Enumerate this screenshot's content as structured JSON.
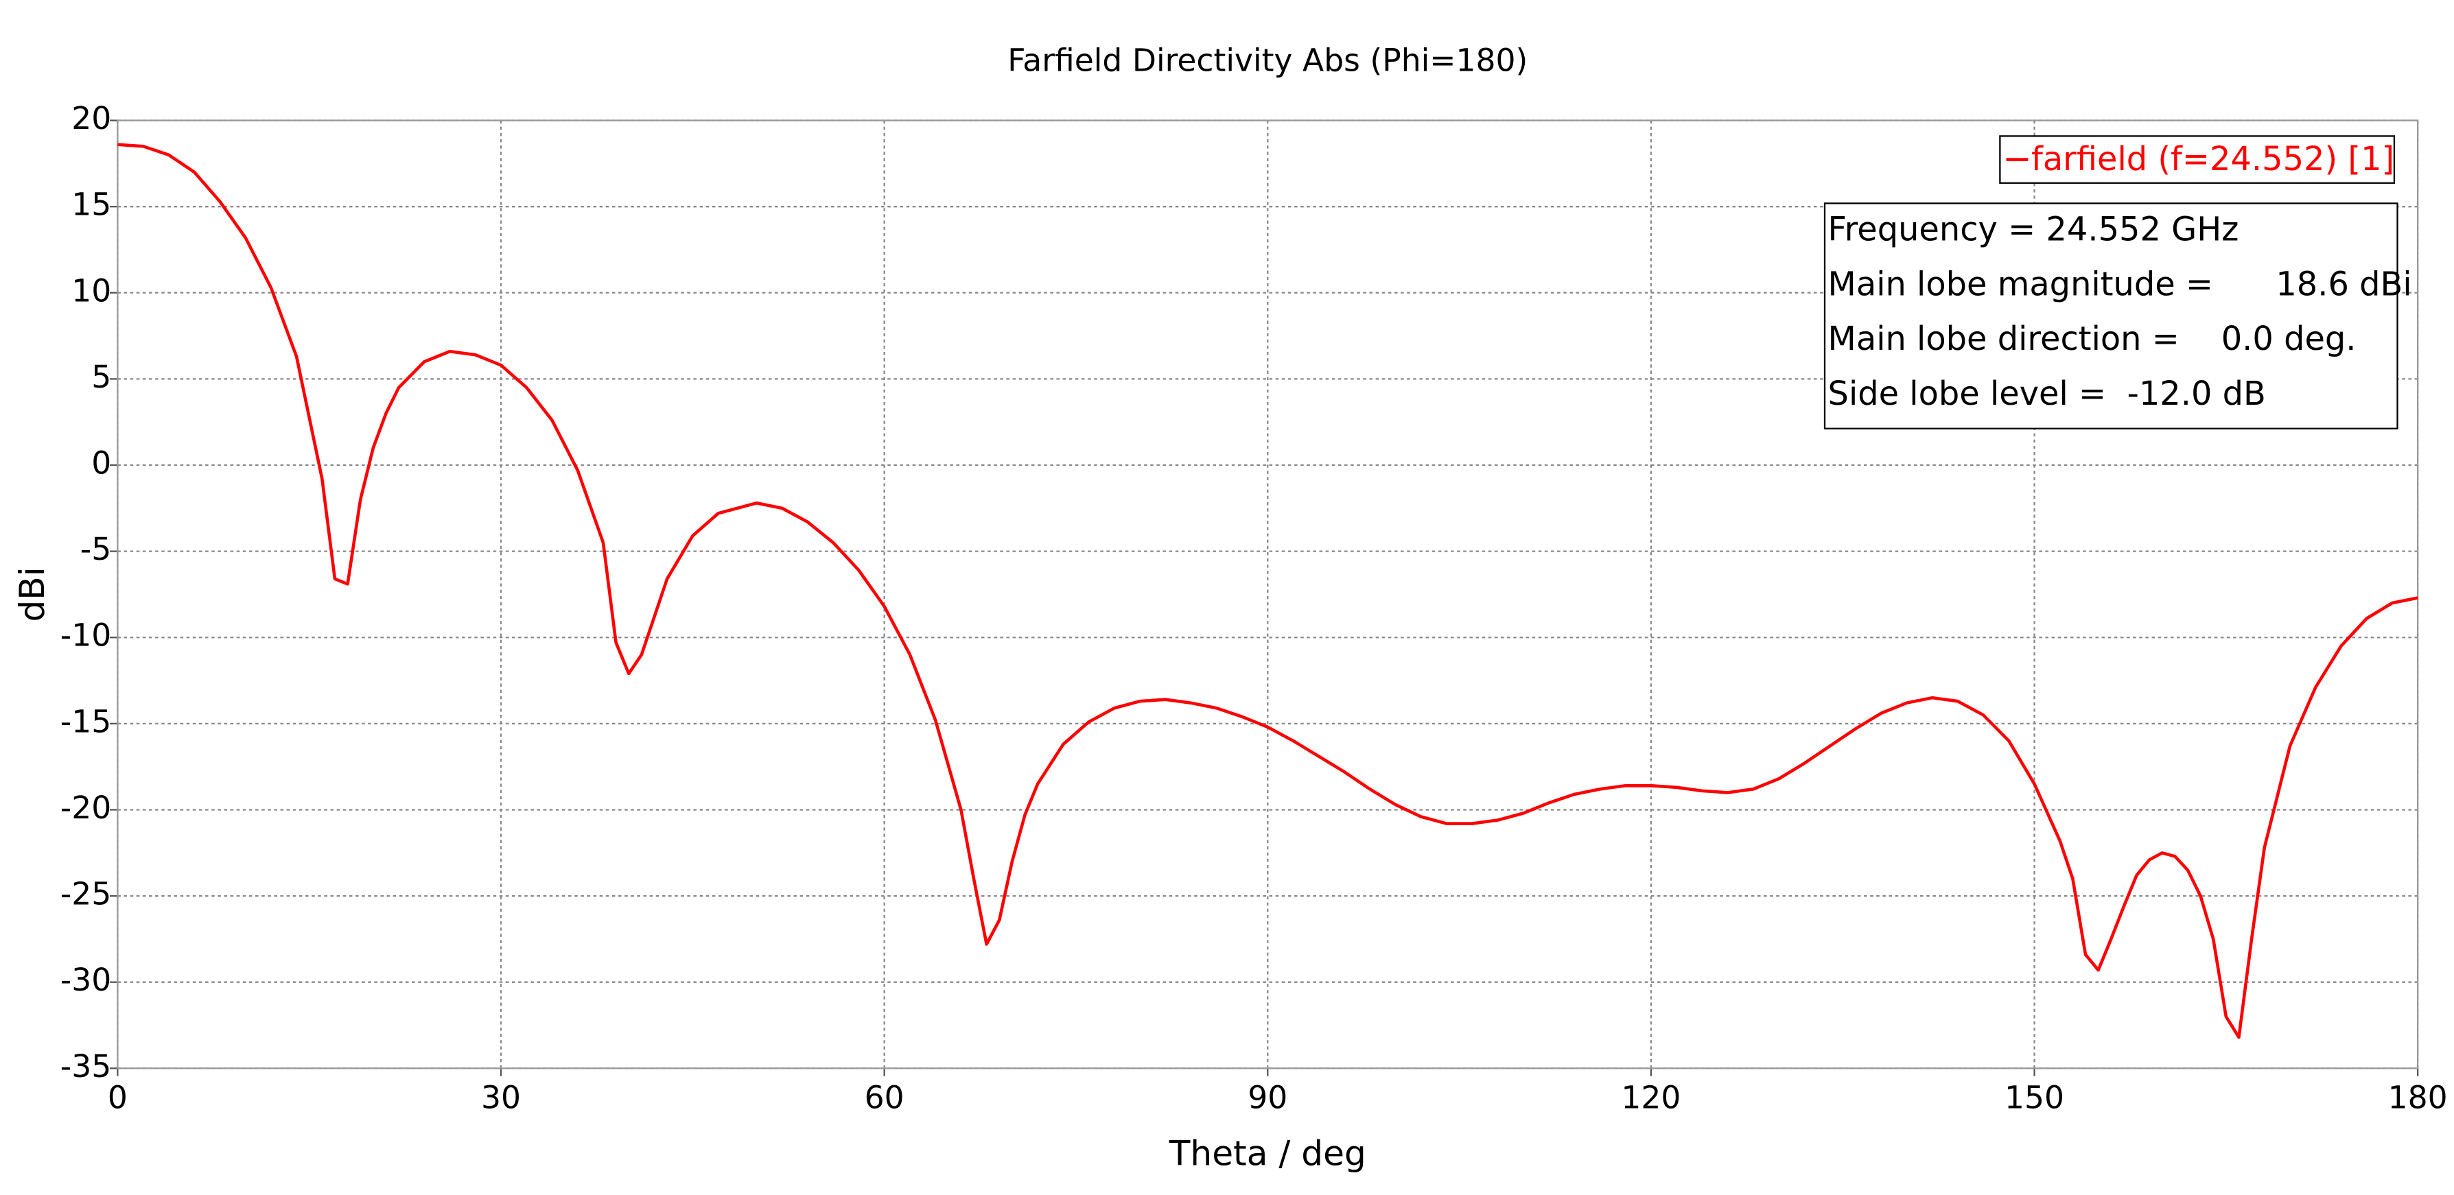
{
  "chart_data": {
    "type": "line",
    "title": "Farfield Directivity Abs (Phi=180)",
    "x_label": "Theta / deg",
    "y_label": "dBi",
    "xlim": [
      0,
      180
    ],
    "xticks": [
      0,
      30,
      60,
      90,
      120,
      150,
      180
    ],
    "ylim": [
      -35,
      20
    ],
    "yticks": [
      -35,
      -30,
      -25,
      -20,
      -15,
      -10,
      -5,
      0,
      5,
      10,
      15,
      20
    ],
    "grid": true,
    "legend": "upper right",
    "x": [
      0,
      2,
      4,
      6,
      8,
      10,
      12,
      14,
      16,
      17,
      18,
      19,
      20,
      21,
      22,
      24,
      26,
      28,
      30,
      32,
      34,
      36,
      38,
      39,
      40,
      41,
      42,
      43,
      45,
      47,
      50,
      52,
      54,
      56,
      58,
      60,
      62,
      64,
      66,
      67,
      68,
      69,
      70,
      71,
      72,
      74,
      76,
      78,
      80,
      82,
      84,
      86,
      88,
      90,
      92,
      94,
      96,
      98,
      100,
      102,
      104,
      106,
      108,
      110,
      112,
      114,
      116,
      118,
      120,
      122,
      124,
      126,
      128,
      130,
      132,
      134,
      136,
      138,
      140,
      142,
      144,
      146,
      148,
      150,
      152,
      153,
      154,
      155,
      156,
      157,
      158,
      159,
      160,
      161,
      162,
      163,
      164,
      165,
      166,
      167,
      168,
      170,
      172,
      174,
      176,
      178,
      180
    ],
    "series": [
      {
        "name": "farfield (f=24.552) [1]",
        "color": "#ff0000",
        "values": [
          18.6,
          18.5,
          18.0,
          17.0,
          15.3,
          13.2,
          10.3,
          6.3,
          -0.8,
          -6.6,
          -6.9,
          -2.0,
          1.0,
          3.0,
          4.5,
          6.0,
          6.6,
          6.4,
          5.8,
          4.5,
          2.6,
          -0.3,
          -4.5,
          -10.3,
          -12.1,
          -11.0,
          -8.8,
          -6.6,
          -4.1,
          -2.8,
          -2.2,
          -2.5,
          -3.3,
          -4.5,
          -6.1,
          -8.2,
          -11.0,
          -14.8,
          -20.0,
          -24.0,
          -27.8,
          -26.4,
          -23.0,
          -20.3,
          -18.5,
          -16.2,
          -14.9,
          -14.1,
          -13.7,
          -13.6,
          -13.8,
          -14.1,
          -14.6,
          -15.2,
          -16.0,
          -16.9,
          -17.8,
          -18.8,
          -19.7,
          -20.4,
          -20.8,
          -20.8,
          -20.6,
          -20.2,
          -19.6,
          -19.1,
          -18.8,
          -18.6,
          -18.6,
          -18.7,
          -18.9,
          -19.0,
          -18.8,
          -18.2,
          -17.3,
          -16.3,
          -15.3,
          -14.4,
          -13.8,
          -13.5,
          -13.7,
          -14.5,
          -16.0,
          -18.5,
          -21.8,
          -24.0,
          -28.4,
          -29.3,
          -27.5,
          -25.6,
          -23.8,
          -22.9,
          -22.5,
          -22.7,
          -23.5,
          -25.0,
          -27.5,
          -32.0,
          -33.2,
          -27.5,
          -22.2,
          -16.3,
          -12.9,
          -10.5,
          -8.9,
          -8.0,
          -7.7
        ]
      }
    ],
    "annotations": [
      "Frequency = 24.552 GHz",
      "Main lobe magnitude =      18.6 dBi",
      "Main lobe direction =    0.0 deg.",
      "Side lobe level =  -12.0 dB"
    ]
  }
}
